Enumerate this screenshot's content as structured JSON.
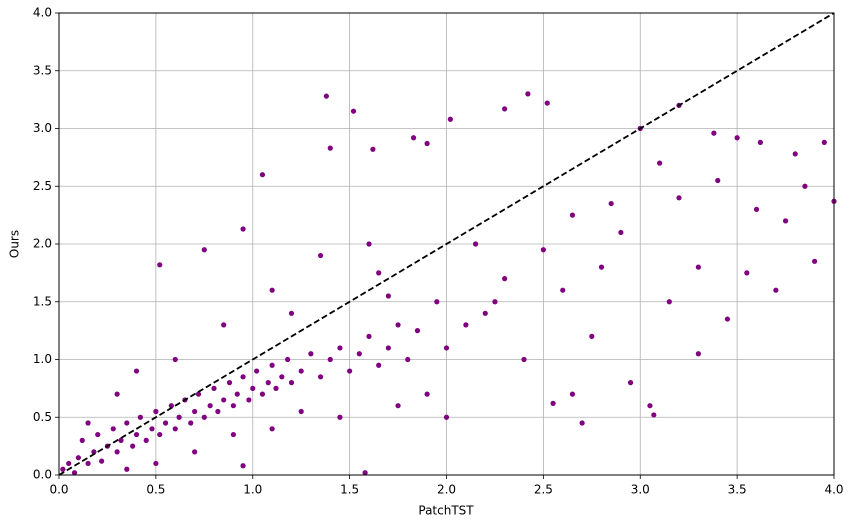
{
  "chart_data": {
    "type": "scatter",
    "xlabel": "PatchTST",
    "ylabel": "Ours",
    "color": "#800080",
    "grid": true,
    "xlim": [
      0,
      4
    ],
    "ylim": [
      0,
      4
    ],
    "xticks": [
      {
        "value": 0,
        "label": "0.0"
      },
      0.5,
      {
        "value": 1,
        "label": "1.0"
      },
      1.5,
      {
        "value": 2,
        "label": "2.0"
      },
      2.5,
      {
        "value": 3,
        "label": "3.0"
      },
      3.5,
      {
        "value": 4,
        "label": "4.0"
      }
    ],
    "yticks": [
      {
        "value": 0,
        "label": "0.0"
      },
      0.5,
      {
        "value": 1,
        "label": "1.0"
      },
      1.5,
      {
        "value": 2,
        "label": "2.0"
      },
      2.5,
      {
        "value": 3,
        "label": "3.0"
      },
      3.5,
      {
        "value": 4,
        "label": "4.0"
      }
    ],
    "reference_line": {
      "x": [
        0,
        4
      ],
      "y": [
        0,
        4
      ],
      "color": "#000000",
      "dashed": true
    },
    "x": [
      0.02,
      0.05,
      0.08,
      0.1,
      0.12,
      0.15,
      0.18,
      0.2,
      0.22,
      0.25,
      0.28,
      0.3,
      0.32,
      0.35,
      0.38,
      0.4,
      0.42,
      0.45,
      0.48,
      0.5,
      0.52,
      0.55,
      0.58,
      0.6,
      0.62,
      0.65,
      0.68,
      0.7,
      0.72,
      0.75,
      0.78,
      0.8,
      0.82,
      0.85,
      0.88,
      0.9,
      0.92,
      0.95,
      0.98,
      1.0,
      1.02,
      1.05,
      1.08,
      1.1,
      1.12,
      1.15,
      1.18,
      1.2,
      1.25,
      1.3,
      1.35,
      1.4,
      1.45,
      1.5,
      1.55,
      1.6,
      1.65,
      1.7,
      1.75,
      1.8,
      1.38,
      1.52,
      1.4,
      1.62,
      1.05,
      0.95,
      2.02,
      2.3,
      2.42,
      2.52,
      1.83,
      1.9,
      3.2,
      3.0,
      3.38,
      3.5,
      3.62,
      3.95,
      4.0,
      3.8,
      3.1,
      3.05,
      3.07,
      2.7,
      2.55,
      1.58,
      0.95,
      0.52,
      0.75,
      2.0,
      2.4,
      2.2,
      2.6,
      2.8,
      3.3,
      3.45,
      3.7,
      3.9,
      3.6,
      3.3,
      2.9,
      2.5,
      2.1,
      2.3,
      1.95,
      1.85,
      1.7,
      1.2,
      0.6,
      0.3,
      0.15,
      0.4,
      0.85,
      1.1,
      1.35,
      1.6,
      2.0,
      2.25,
      2.75,
      3.15,
      3.55,
      3.75,
      2.95,
      2.65,
      1.9,
      1.75,
      1.45,
      1.25,
      1.1,
      0.9,
      0.7,
      0.5,
      0.35,
      3.85,
      3.4,
      3.2,
      2.85,
      2.65,
      2.15,
      1.65
    ],
    "values": [
      0.05,
      0.1,
      0.02,
      0.15,
      0.3,
      0.1,
      0.2,
      0.35,
      0.12,
      0.25,
      0.4,
      0.2,
      0.3,
      0.45,
      0.25,
      0.35,
      0.5,
      0.3,
      0.4,
      0.55,
      0.35,
      0.45,
      0.6,
      0.4,
      0.5,
      0.65,
      0.45,
      0.55,
      0.7,
      0.5,
      0.6,
      0.75,
      0.55,
      0.65,
      0.8,
      0.6,
      0.7,
      0.85,
      0.65,
      0.75,
      0.9,
      0.7,
      0.8,
      0.95,
      0.75,
      0.85,
      1.0,
      0.8,
      0.9,
      1.05,
      0.85,
      1.0,
      1.1,
      0.9,
      1.05,
      1.2,
      0.95,
      1.1,
      1.3,
      1.0,
      3.28,
      3.15,
      2.83,
      2.82,
      2.6,
      2.13,
      3.08,
      3.17,
      3.3,
      3.22,
      2.92,
      2.87,
      3.2,
      3.0,
      2.96,
      2.92,
      2.88,
      2.88,
      2.37,
      2.78,
      2.7,
      0.6,
      0.52,
      0.45,
      0.62,
      0.02,
      0.08,
      1.82,
      1.95,
      0.5,
      1.0,
      1.4,
      1.6,
      1.8,
      1.05,
      1.35,
      1.6,
      1.85,
      2.3,
      1.8,
      2.1,
      1.95,
      1.3,
      1.7,
      1.5,
      1.25,
      1.55,
      1.4,
      1.0,
      0.7,
      0.45,
      0.9,
      1.3,
      1.6,
      1.9,
      2.0,
      1.1,
      1.5,
      1.2,
      1.5,
      1.75,
      2.2,
      0.8,
      0.7,
      0.7,
      0.6,
      0.5,
      0.55,
      0.4,
      0.35,
      0.2,
      0.1,
      0.05,
      2.5,
      2.55,
      2.4,
      2.35,
      2.25,
      2.0,
      1.75
    ]
  }
}
